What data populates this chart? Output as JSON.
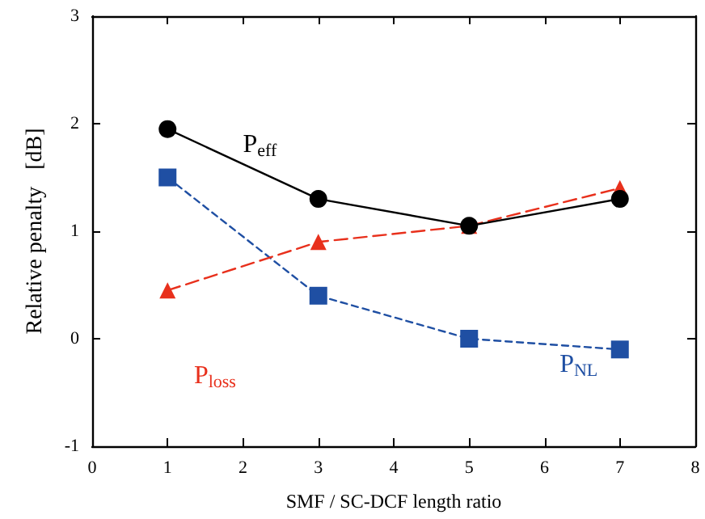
{
  "chart_data": {
    "type": "line",
    "xlabel": "SMF / SC-DCF length ratio",
    "ylabel": "Relative penalty   [dB]",
    "x": [
      1,
      3,
      5,
      7
    ],
    "series": [
      {
        "name": "P$_{eff}$",
        "color": "#000000",
        "values": [
          1.95,
          1.3,
          1.05,
          1.3
        ],
        "marker": "circle",
        "line_style": "solid"
      },
      {
        "name": "P$_{loss}$",
        "color": "#e8301c",
        "values": [
          0.45,
          0.9,
          1.05,
          1.4
        ],
        "marker": "triangle",
        "line_style": "dashed"
      },
      {
        "name": "P$_{NL}$",
        "color": "#1f4fa3",
        "values": [
          1.5,
          0.4,
          0,
          -0.1
        ],
        "marker": "square",
        "line_style": "dotted"
      }
    ],
    "xlim": [
      0,
      8
    ],
    "xticks": [
      0,
      1,
      2,
      3,
      4,
      5,
      6,
      7,
      8
    ],
    "ylim": [
      -1,
      3
    ],
    "yticks": [
      -1,
      0,
      1,
      2,
      3
    ],
    "grid": false,
    "legend": false
  }
}
